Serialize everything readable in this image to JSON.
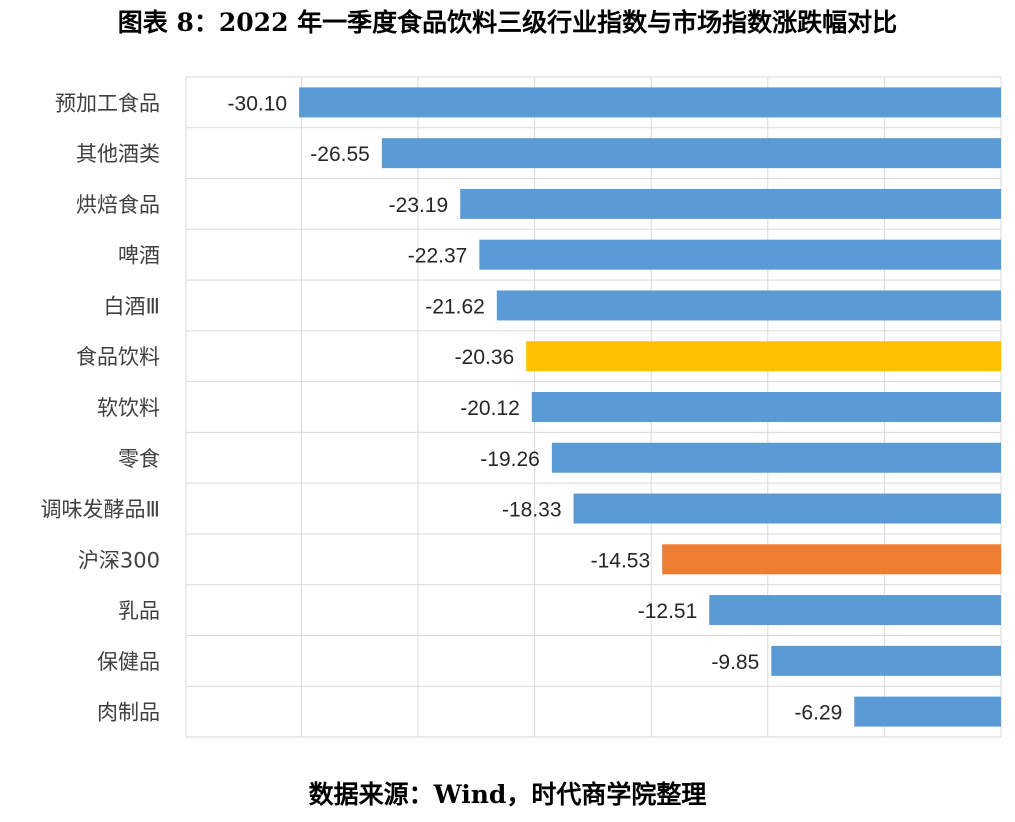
{
  "title": "图表 8：2022 年一季度食品饮料三级行业指数与市场指数涨跌幅对比",
  "source": "数据来源：Wind，时代商学院整理",
  "colors": {
    "default": "#5b9bd5",
    "highlight_sector": "#ffc000",
    "highlight_market": "#ed7d31",
    "grid": "#d9d9d9"
  },
  "chart_data": {
    "type": "bar",
    "orientation": "horizontal",
    "title": "图表 8：2022 年一季度食品饮料三级行业指数与市场指数涨跌幅对比",
    "xlabel": "",
    "ylabel": "",
    "xlim": [
      -30,
      0
    ],
    "grid": true,
    "legend": "none",
    "categories": [
      "预加工食品",
      "其他酒类",
      "烘焙食品",
      "啤酒",
      "白酒Ⅲ",
      "食品饮料",
      "软饮料",
      "零食",
      "调味发酵品Ⅲ",
      "沪深300",
      "乳品",
      "保健品",
      "肉制品"
    ],
    "values": [
      -30.1,
      -26.55,
      -23.19,
      -22.37,
      -21.62,
      -20.36,
      -20.12,
      -19.26,
      -18.33,
      -14.53,
      -12.51,
      -9.85,
      -6.29
    ],
    "value_labels": [
      "-30.10",
      "-26.55",
      "-23.19",
      "-22.37",
      "-21.62",
      "-20.36",
      "-20.12",
      "-19.26",
      "-18.33",
      "-14.53",
      "-12.51",
      "-9.85",
      "-6.29"
    ],
    "bar_colors": [
      "#5b9bd5",
      "#5b9bd5",
      "#5b9bd5",
      "#5b9bd5",
      "#5b9bd5",
      "#ffc000",
      "#5b9bd5",
      "#5b9bd5",
      "#5b9bd5",
      "#ed7d31",
      "#5b9bd5",
      "#5b9bd5",
      "#5b9bd5"
    ]
  }
}
